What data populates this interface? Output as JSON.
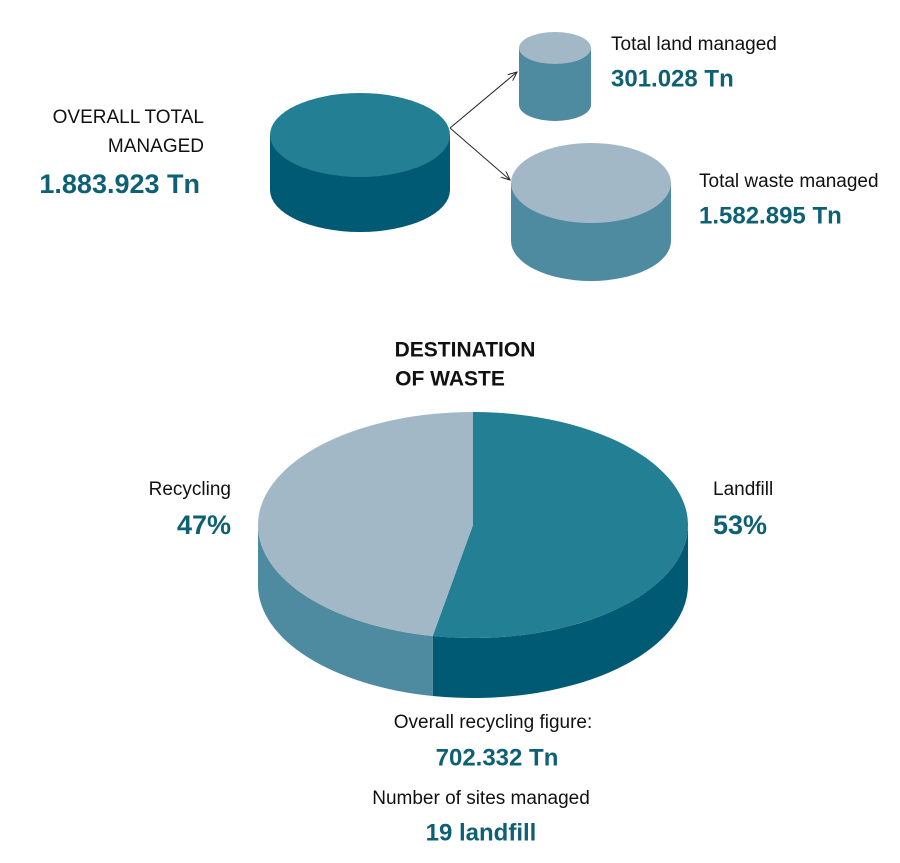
{
  "overall": {
    "label_lines": [
      "OVERALL TOTAL",
      "MANAGED"
    ],
    "value": "1.883.923 Tn"
  },
  "land": {
    "label": "Total land managed",
    "value": "301.028  Tn"
  },
  "waste": {
    "label": "Total waste managed",
    "value": "1.582.895 Tn"
  },
  "chart_data": {
    "type": "pie",
    "title": [
      "DESTINATION",
      "OF WASTE"
    ],
    "categories": [
      "Recycling",
      "Landfill"
    ],
    "values": [
      47,
      53
    ],
    "value_labels": [
      "47%",
      "53%"
    ],
    "colors": [
      "#a3b8c7",
      "#237f93"
    ],
    "side_colors": [
      "#4e8aa0",
      "#005a73"
    ]
  },
  "footer": {
    "recycling_label": "Overall recycling figure:",
    "recycling_value": "702.332 Tn",
    "sites_label": "Number of sites managed",
    "sites_value": "19 landfill"
  }
}
